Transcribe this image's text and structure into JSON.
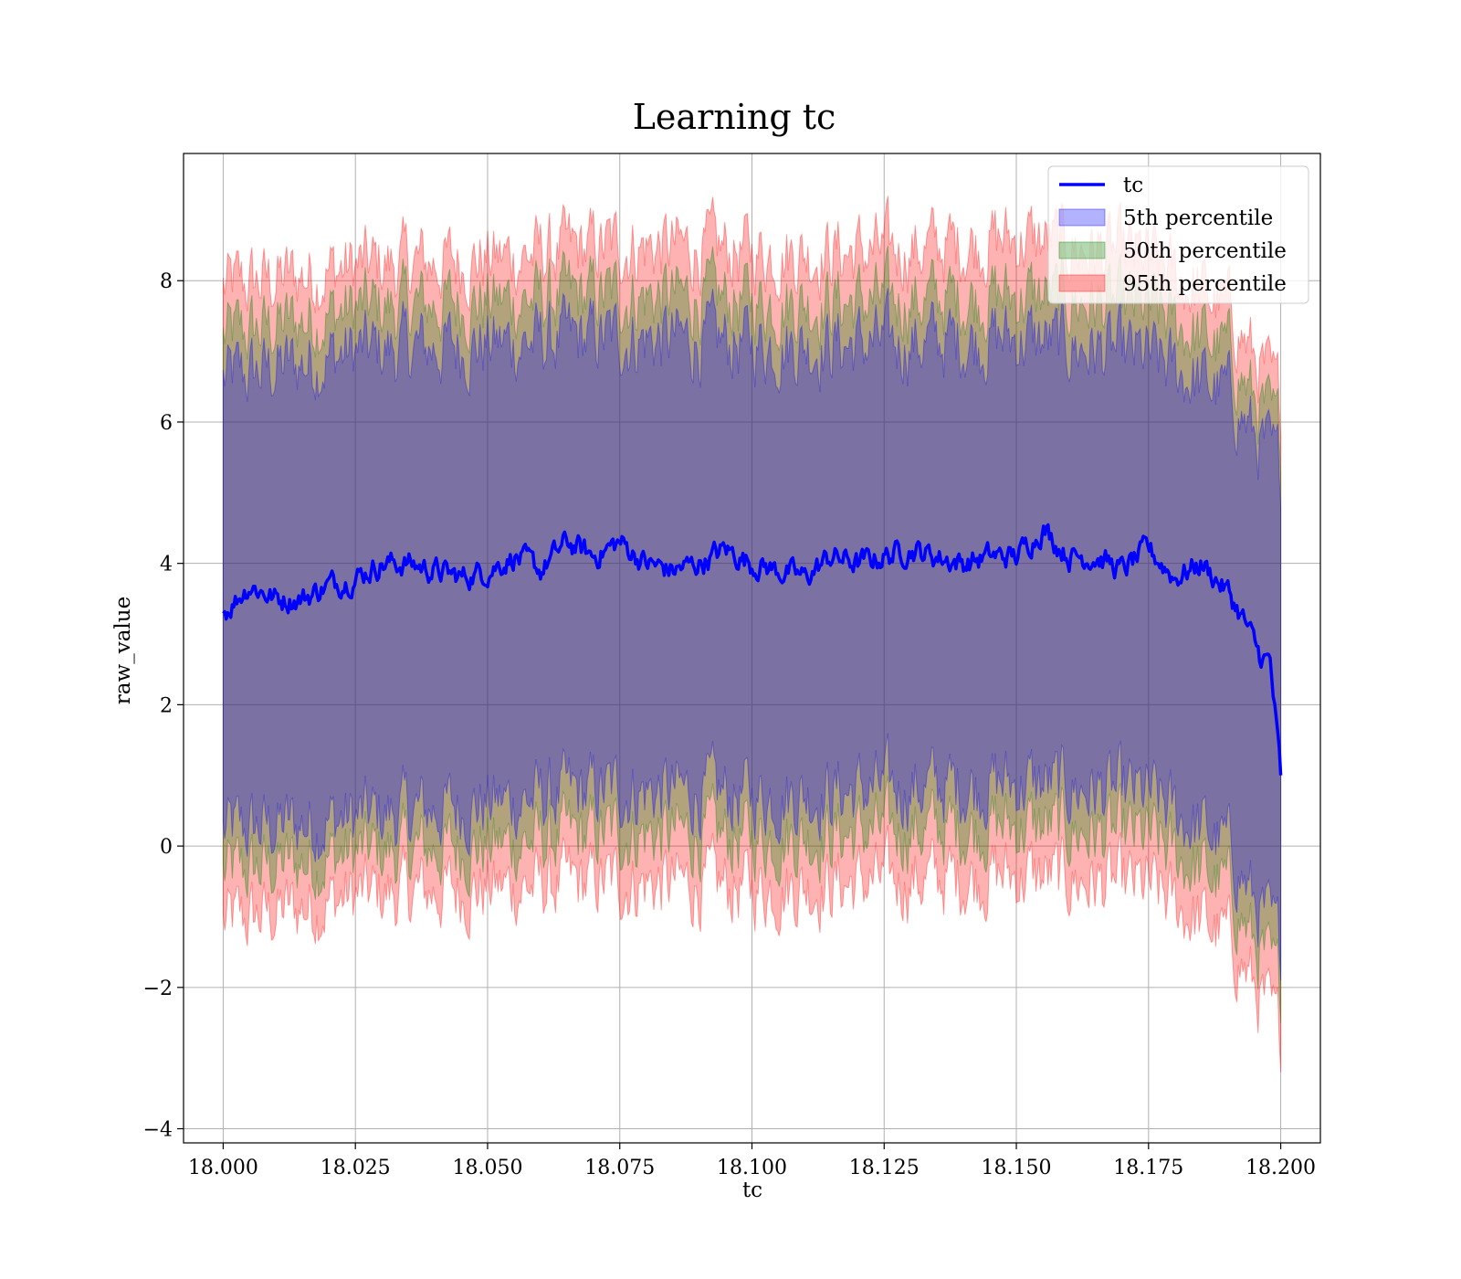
{
  "chart_data": {
    "type": "line",
    "title": "Learning tc",
    "xlabel": "tc",
    "ylabel": "raw_value",
    "xlim": [
      17.9925,
      18.2075
    ],
    "ylim": [
      -4.2,
      9.8
    ],
    "x_ticks": [
      18.0,
      18.025,
      18.05,
      18.075,
      18.1,
      18.125,
      18.15,
      18.175,
      18.2
    ],
    "x_tick_labels": [
      "18.000",
      "18.025",
      "18.050",
      "18.075",
      "18.100",
      "18.125",
      "18.150",
      "18.175",
      "18.200"
    ],
    "y_ticks": [
      -4,
      -2,
      0,
      2,
      4,
      6,
      8
    ],
    "y_tick_labels": [
      "−4",
      "−2",
      "0",
      "2",
      "4",
      "6",
      "8"
    ],
    "grid": true,
    "legend_position": "top-right",
    "colors": {
      "line": "#0000ff",
      "band_5": "#0000ff",
      "band_50": "#008000",
      "band_95": "#ff0000"
    },
    "line": {
      "name": "tc",
      "x": [
        18.0,
        18.005,
        18.01,
        18.015,
        18.02,
        18.025,
        18.03,
        18.035,
        18.04,
        18.045,
        18.05,
        18.055,
        18.06,
        18.065,
        18.07,
        18.075,
        18.08,
        18.085,
        18.09,
        18.095,
        18.1,
        18.105,
        18.11,
        18.115,
        18.12,
        18.125,
        18.13,
        18.135,
        18.14,
        18.145,
        18.15,
        18.155,
        18.16,
        18.165,
        18.17,
        18.175,
        18.18,
        18.185,
        18.19,
        18.193,
        18.196,
        18.198,
        18.2
      ],
      "y": [
        3.3,
        3.7,
        3.5,
        3.5,
        3.7,
        3.8,
        4.0,
        4.0,
        3.9,
        3.8,
        3.9,
        4.1,
        3.9,
        4.3,
        4.1,
        4.3,
        4.0,
        3.9,
        4.0,
        4.2,
        4.0,
        3.9,
        3.8,
        4.1,
        4.0,
        4.1,
        4.2,
        4.1,
        4.0,
        4.1,
        4.1,
        4.5,
        4.1,
        4.1,
        3.9,
        4.2,
        3.8,
        4.0,
        3.6,
        3.2,
        2.7,
        2.6,
        1.0
      ]
    },
    "bands": [
      {
        "name": "5th percentile",
        "x": [
          18.0,
          18.025,
          18.05,
          18.075,
          18.1,
          18.125,
          18.15,
          18.175,
          18.19,
          18.195,
          18.2
        ],
        "upper": [
          6.6,
          7.0,
          7.1,
          7.2,
          7.1,
          7.1,
          7.2,
          6.9,
          6.4,
          5.8,
          5.3
        ],
        "lower": [
          0.2,
          0.4,
          0.6,
          0.8,
          0.7,
          0.8,
          0.9,
          0.7,
          0.0,
          -0.8,
          -1.4
        ]
      },
      {
        "name": "50th percentile",
        "x": [
          18.0,
          18.025,
          18.05,
          18.075,
          18.1,
          18.125,
          18.15,
          18.175,
          18.19,
          18.195,
          18.2
        ],
        "upper": [
          7.2,
          7.6,
          7.7,
          7.8,
          7.7,
          7.7,
          7.8,
          7.6,
          7.0,
          6.3,
          5.8
        ],
        "lower": [
          -0.4,
          -0.1,
          0.0,
          0.2,
          0.1,
          0.2,
          0.3,
          0.1,
          -0.6,
          -1.4,
          -2.0
        ]
      },
      {
        "name": "95th percentile",
        "x": [
          18.0,
          18.025,
          18.05,
          18.075,
          18.1,
          18.125,
          18.15,
          18.175,
          18.19,
          18.195,
          18.2
        ],
        "upper": [
          7.9,
          8.2,
          8.3,
          8.5,
          8.4,
          8.4,
          8.6,
          8.3,
          7.6,
          6.9,
          6.3
        ],
        "lower": [
          -1.1,
          -0.7,
          -0.6,
          -0.5,
          -0.6,
          -0.5,
          -0.4,
          -0.6,
          -1.3,
          -2.0,
          -2.7
        ]
      }
    ]
  }
}
